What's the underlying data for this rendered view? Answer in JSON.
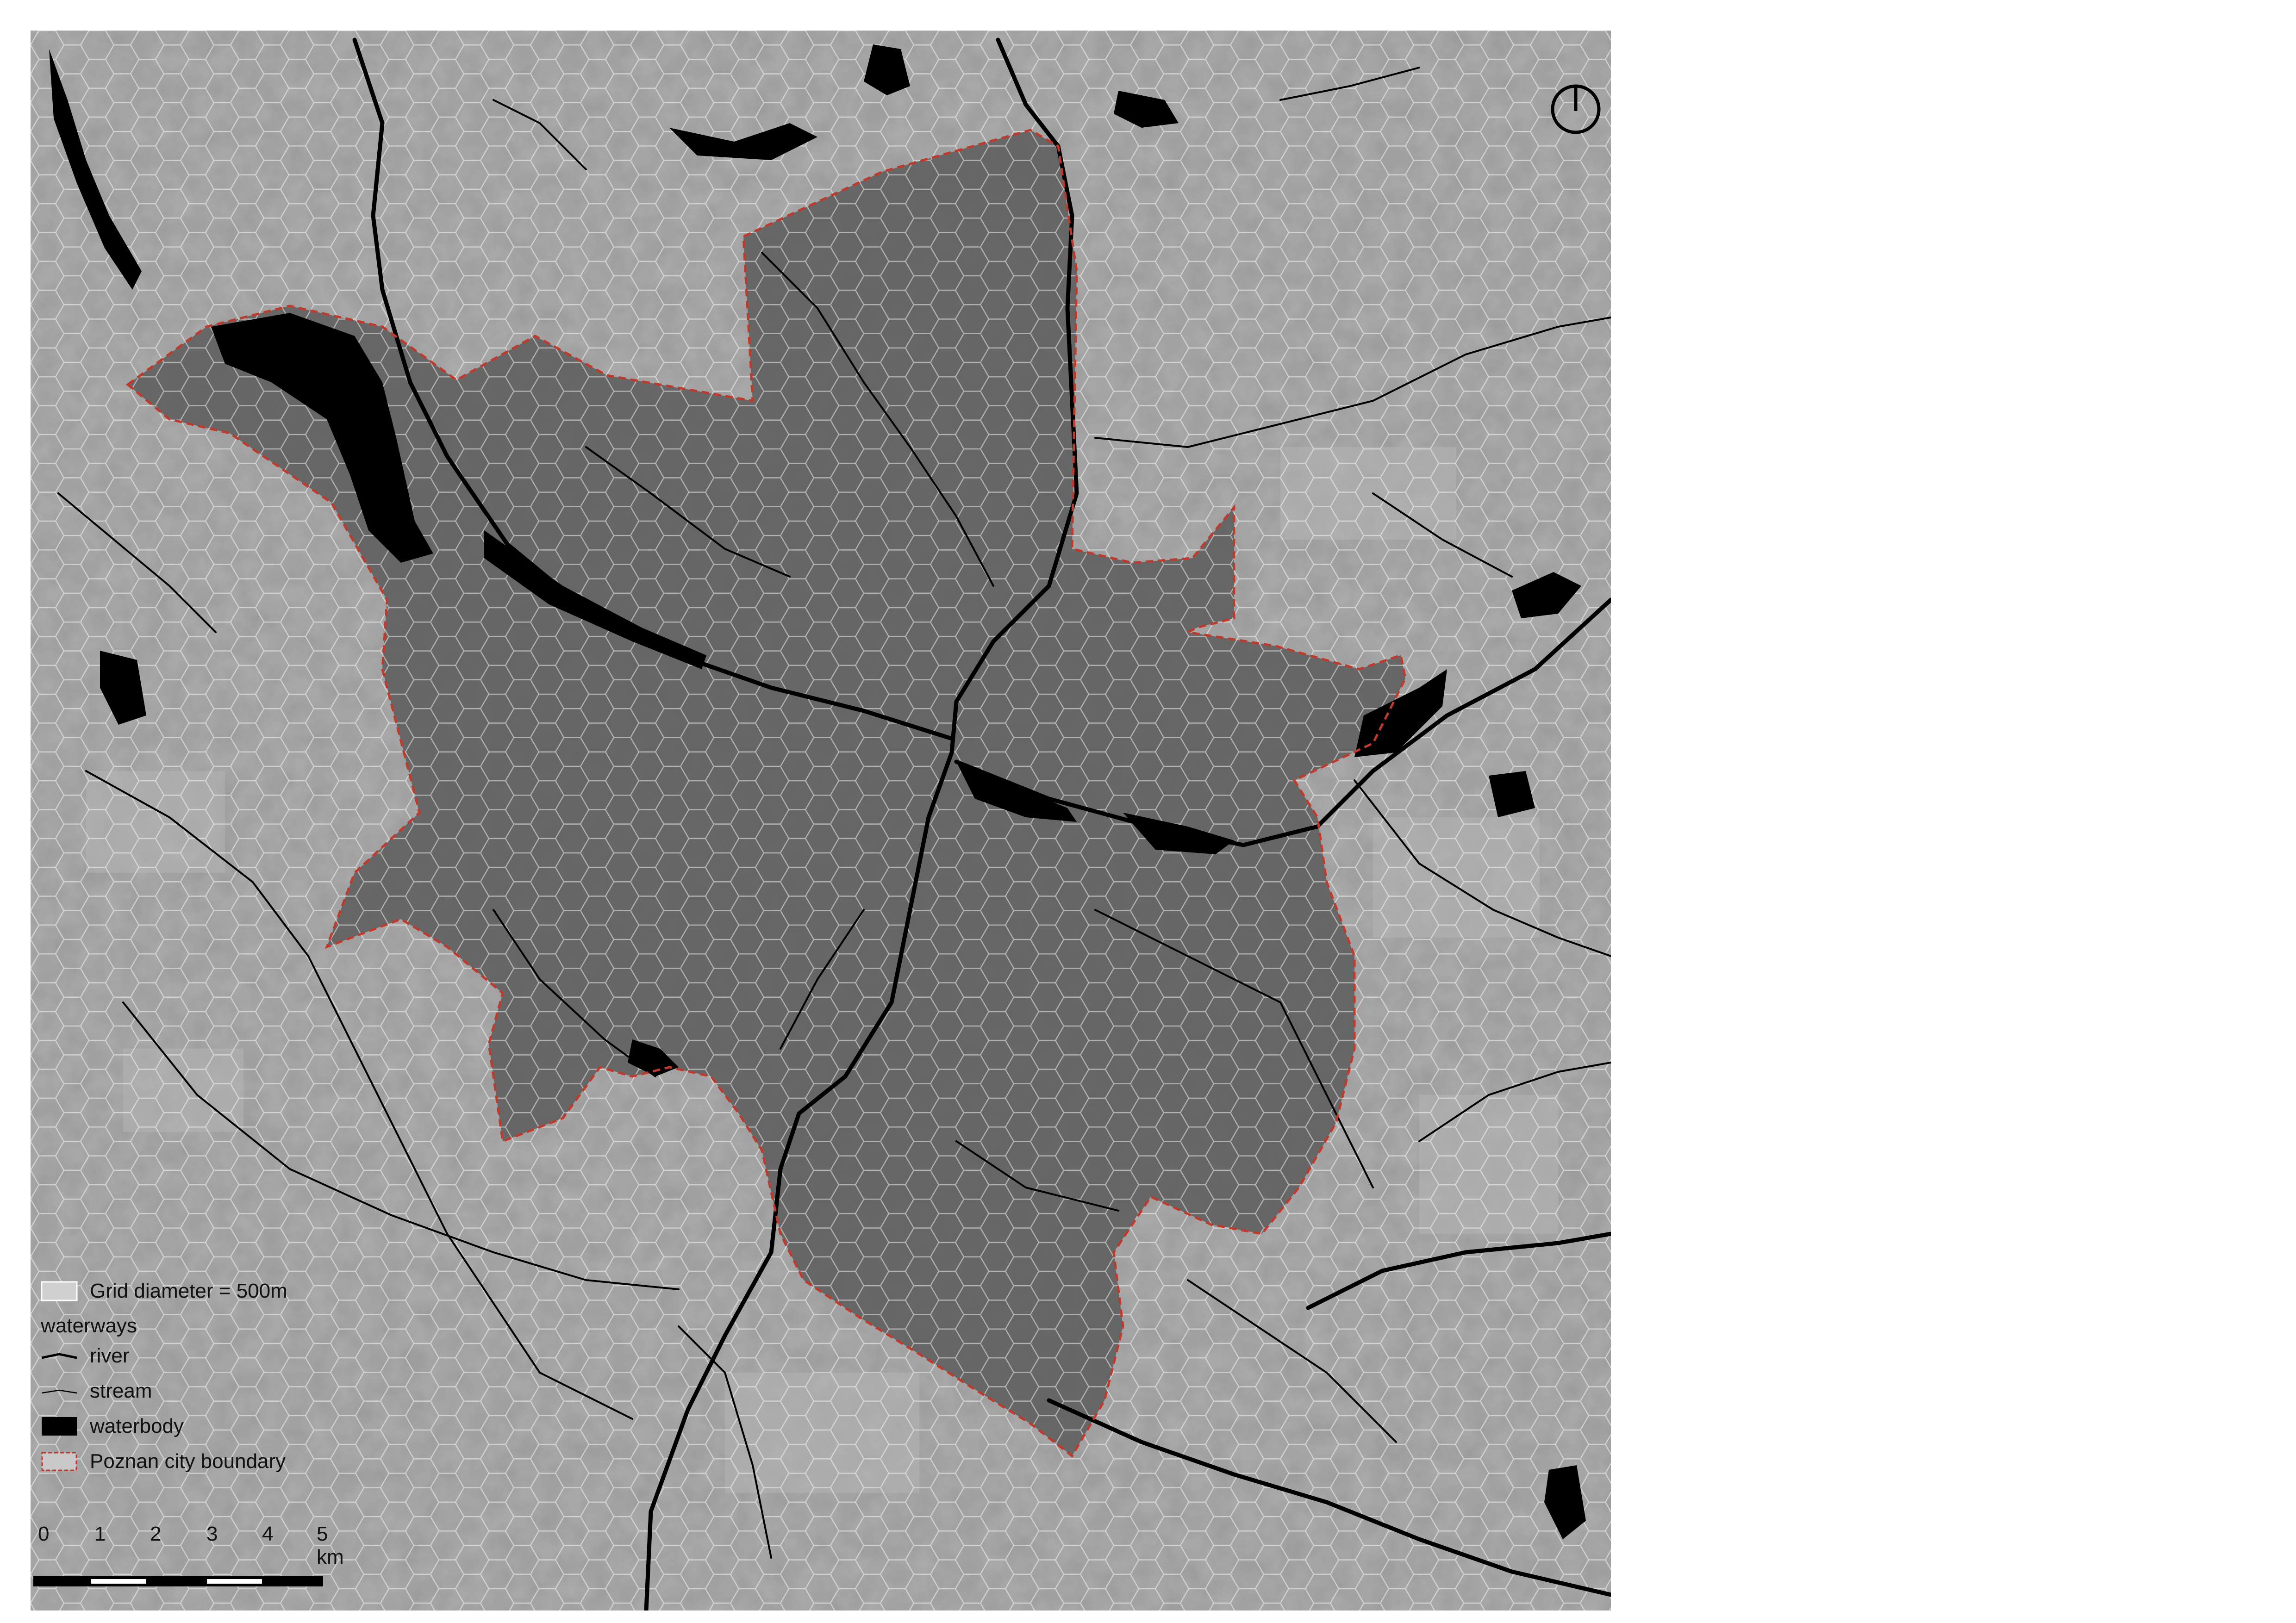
{
  "map": {
    "colors": {
      "background": "#9a9a9a",
      "city_fill": "#5c5c5c",
      "hex_grid": "#ffffff",
      "water": "#000000",
      "boundary": "#c0392b"
    }
  },
  "legend": {
    "grid_label": "Grid diameter = 500m",
    "waterways_title": "waterways",
    "river_label": "river",
    "stream_label": "stream",
    "waterbody_label": "waterbody",
    "boundary_label": "Poznan city boundary"
  },
  "scale_bar": {
    "ticks": [
      "0",
      "1",
      "2",
      "3",
      "4",
      "5 km"
    ]
  },
  "north_arrow": {
    "icon": "north-arrow-icon"
  }
}
